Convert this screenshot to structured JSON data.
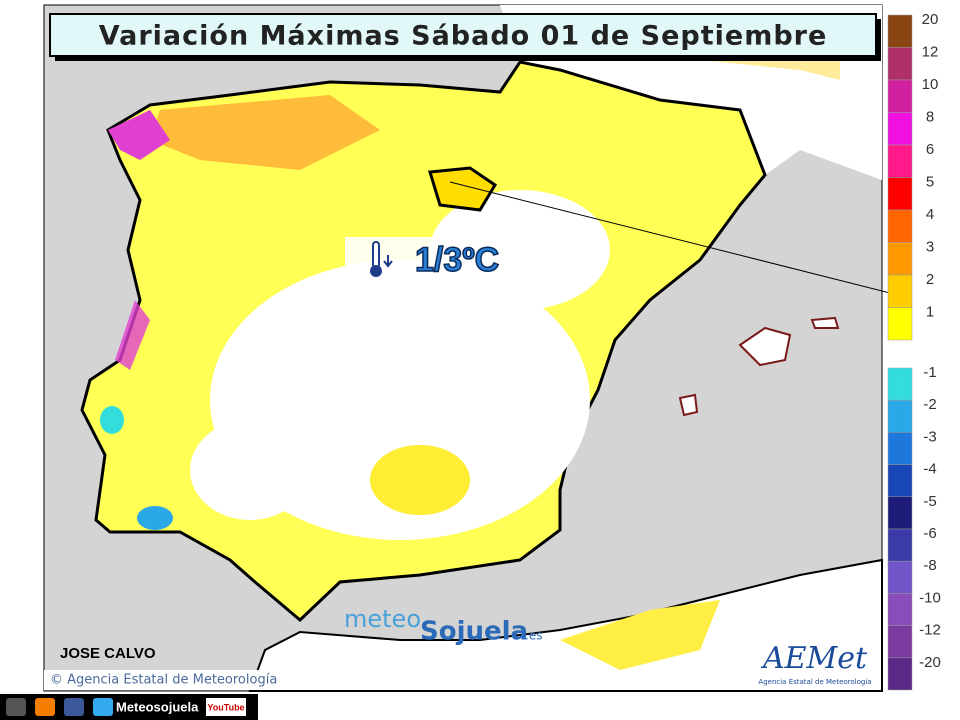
{
  "header": {
    "title": "Variación Máximas Sábado 01 de Septiembre"
  },
  "annotation": {
    "text": "1/3ºC"
  },
  "author": "JOSE CALVO",
  "copyright": "© Agencia Estatal de Meteorología",
  "brand": {
    "prefix": "meteo",
    "name": "Sojuela",
    "suffix": ".es"
  },
  "aemet": {
    "logo": "AEMet",
    "caption": "Agencia Estatal de Meteorología"
  },
  "social": {
    "account": "Meteosojuela",
    "youtube": "YouTube"
  },
  "legend": {
    "positive": [
      {
        "label": 20,
        "color": "#8b4513"
      },
      {
        "label": 12,
        "color": "#b0306a"
      },
      {
        "label": 10,
        "color": "#d21fa0"
      },
      {
        "label": 8,
        "color": "#f010e0"
      },
      {
        "label": 6,
        "color": "#ff1a8c"
      },
      {
        "label": 5,
        "color": "#ff0000"
      },
      {
        "label": 4,
        "color": "#ff6600"
      },
      {
        "label": 3,
        "color": "#ff9900"
      },
      {
        "label": 2,
        "color": "#ffcc00"
      },
      {
        "label": 1,
        "color": "#ffff00"
      }
    ],
    "negative": [
      {
        "label": -1,
        "color": "#33dddd"
      },
      {
        "label": -2,
        "color": "#2aa8e8"
      },
      {
        "label": -3,
        "color": "#1e78dc"
      },
      {
        "label": -4,
        "color": "#1846b4"
      },
      {
        "label": -5,
        "color": "#1c1c78"
      },
      {
        "label": -6,
        "color": "#3a3aa8"
      },
      {
        "label": -8,
        "color": "#7055c8"
      },
      {
        "label": -10,
        "color": "#8a4cb8"
      },
      {
        "label": -12,
        "color": "#7a3aa0"
      },
      {
        "label": -20,
        "color": "#5a2a88"
      }
    ]
  }
}
